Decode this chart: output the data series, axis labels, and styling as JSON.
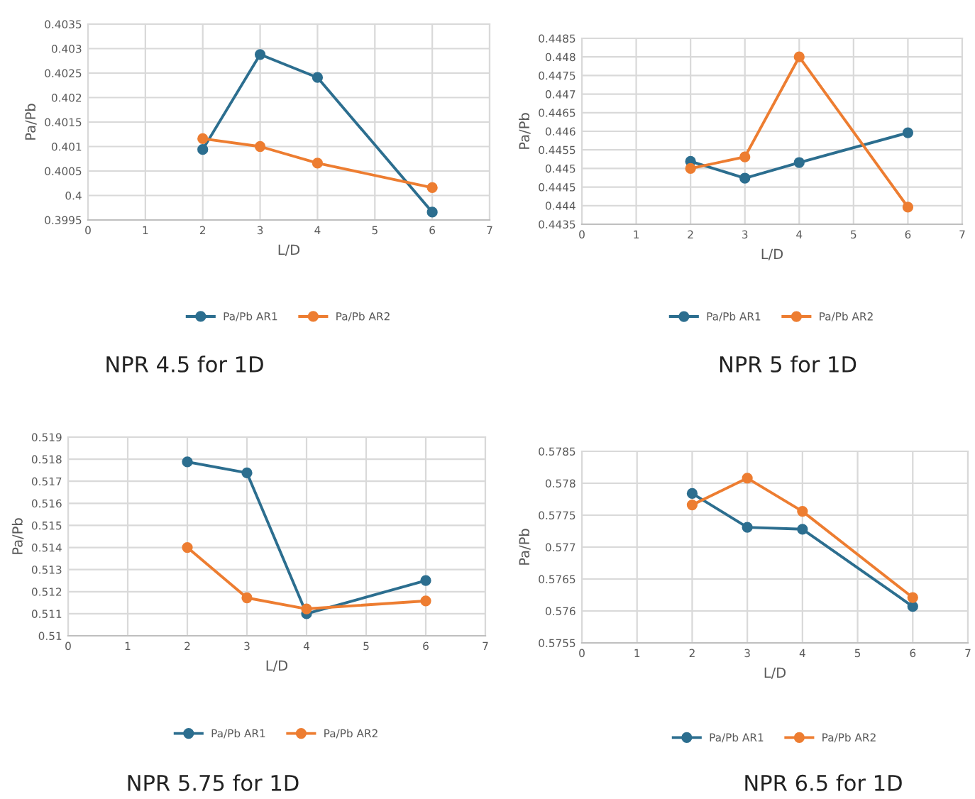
{
  "chart_data": [
    {
      "type": "line",
      "xlabel": "L/D",
      "ylabel": "Pa/Pb",
      "xlim": [
        0,
        7
      ],
      "xticks": [
        0,
        1,
        2,
        3,
        4,
        5,
        6,
        7
      ],
      "ylim": [
        0.3995,
        0.4035
      ],
      "yticks": [
        0.3995,
        0.4,
        0.4005,
        0.401,
        0.4015,
        0.402,
        0.4025,
        0.403,
        0.4035
      ],
      "x": [
        2,
        3,
        4,
        6
      ],
      "grid": true,
      "legend": "bottom",
      "marker": "circle",
      "annotations": [
        "NPR 4.5 for 1D"
      ],
      "series": [
        {
          "name": "Pa/Pb AR1",
          "color": "#2c6e8f",
          "values": [
            0.40094,
            0.40288,
            0.40241,
            0.39966
          ]
        },
        {
          "name": "Pa/Pb AR2",
          "color": "#ed7d31",
          "values": [
            0.40116,
            0.401,
            0.40066,
            0.40016
          ]
        }
      ]
    },
    {
      "type": "line",
      "xlabel": "L/D",
      "ylabel": "Pa/Pb",
      "xlim": [
        0,
        7
      ],
      "xticks": [
        0,
        1,
        2,
        3,
        4,
        5,
        6,
        7
      ],
      "ylim": [
        0.4435,
        0.4485
      ],
      "yticks": [
        0.4435,
        0.444,
        0.4445,
        0.445,
        0.4455,
        0.446,
        0.4465,
        0.447,
        0.4475,
        0.448,
        0.4485
      ],
      "x": [
        2,
        3,
        4,
        6
      ],
      "grid": true,
      "legend": "bottom",
      "marker": "circle",
      "annotations": [
        "NPR 5 for 1D"
      ],
      "series": [
        {
          "name": "Pa/Pb AR1",
          "color": "#2c6e8f",
          "values": [
            0.44519,
            0.44474,
            0.44516,
            0.44596
          ]
        },
        {
          "name": "Pa/Pb AR2",
          "color": "#ed7d31",
          "values": [
            0.445,
            0.44531,
            0.448,
            0.44396
          ]
        }
      ]
    },
    {
      "type": "line",
      "xlabel": "L/D",
      "ylabel": "Pa/Pb",
      "xlim": [
        0,
        7
      ],
      "xticks": [
        0,
        1,
        2,
        3,
        4,
        5,
        6,
        7
      ],
      "ylim": [
        0.51,
        0.519
      ],
      "yticks": [
        0.51,
        0.511,
        0.512,
        0.513,
        0.514,
        0.515,
        0.516,
        0.517,
        0.518,
        0.519
      ],
      "x": [
        2,
        3,
        4,
        6
      ],
      "grid": true,
      "legend": "bottom",
      "marker": "circle",
      "annotations": [
        "NPR 5.75 for 1D"
      ],
      "series": [
        {
          "name": "Pa/Pb AR1",
          "color": "#2c6e8f",
          "values": [
            0.51788,
            0.51738,
            0.511,
            0.5125
          ]
        },
        {
          "name": "Pa/Pb AR2",
          "color": "#ed7d31",
          "values": [
            0.514,
            0.51172,
            0.51122,
            0.51158
          ]
        }
      ]
    },
    {
      "type": "line",
      "xlabel": "L/D",
      "ylabel": "Pa/Pb",
      "xlim": [
        0,
        7
      ],
      "xticks": [
        0,
        1,
        2,
        3,
        4,
        5,
        6,
        7
      ],
      "ylim": [
        0.5755,
        0.5785
      ],
      "yticks": [
        0.5755,
        0.576,
        0.5765,
        0.577,
        0.5775,
        0.578,
        0.5785
      ],
      "x": [
        2,
        3,
        4,
        6
      ],
      "grid": true,
      "legend": "bottom",
      "marker": "circle",
      "annotations": [
        "NPR 6.5 for 1D"
      ],
      "series": [
        {
          "name": "Pa/Pb AR1",
          "color": "#2c6e8f",
          "values": [
            0.57784,
            0.57731,
            0.57728,
            0.57607
          ]
        },
        {
          "name": "Pa/Pb AR2",
          "color": "#ed7d31",
          "values": [
            0.57766,
            0.57808,
            0.57756,
            0.57621
          ]
        }
      ]
    }
  ]
}
